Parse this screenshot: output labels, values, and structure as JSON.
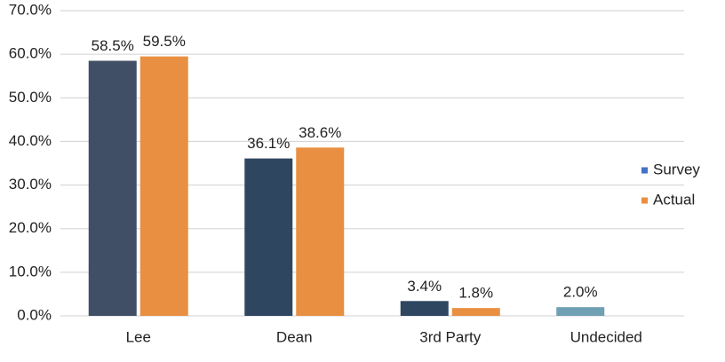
{
  "chart_data": {
    "type": "bar",
    "categories": [
      "Lee",
      "Dean",
      "3rd Party",
      "Undecided"
    ],
    "series": [
      {
        "name": "Survey",
        "color": "#4472c4",
        "bar_colors": [
          "#414f66",
          "#2f4661",
          "#2f4661",
          "#6fa0b3"
        ],
        "values": [
          58.5,
          36.1,
          3.4,
          2.0
        ],
        "value_labels": [
          "58.5%",
          "36.1%",
          "3.4%",
          "2.0%"
        ]
      },
      {
        "name": "Actual",
        "color": "#e98f41",
        "values": [
          59.5,
          38.6,
          1.8,
          null
        ],
        "value_labels": [
          "59.5%",
          "38.6%",
          "1.8%",
          null
        ]
      }
    ],
    "ylim": [
      0,
      70
    ],
    "yticks": [
      {
        "value": 0,
        "label": "0.0%"
      },
      {
        "value": 10,
        "label": "10.0%"
      },
      {
        "value": 20,
        "label": "20.0%"
      },
      {
        "value": 30,
        "label": "30.0%"
      },
      {
        "value": 40,
        "label": "40.0%"
      },
      {
        "value": 50,
        "label": "50.0%"
      },
      {
        "value": 60,
        "label": "60.0%"
      },
      {
        "value": 70,
        "label": "70.0%"
      }
    ],
    "grid": true,
    "legend": "right"
  }
}
